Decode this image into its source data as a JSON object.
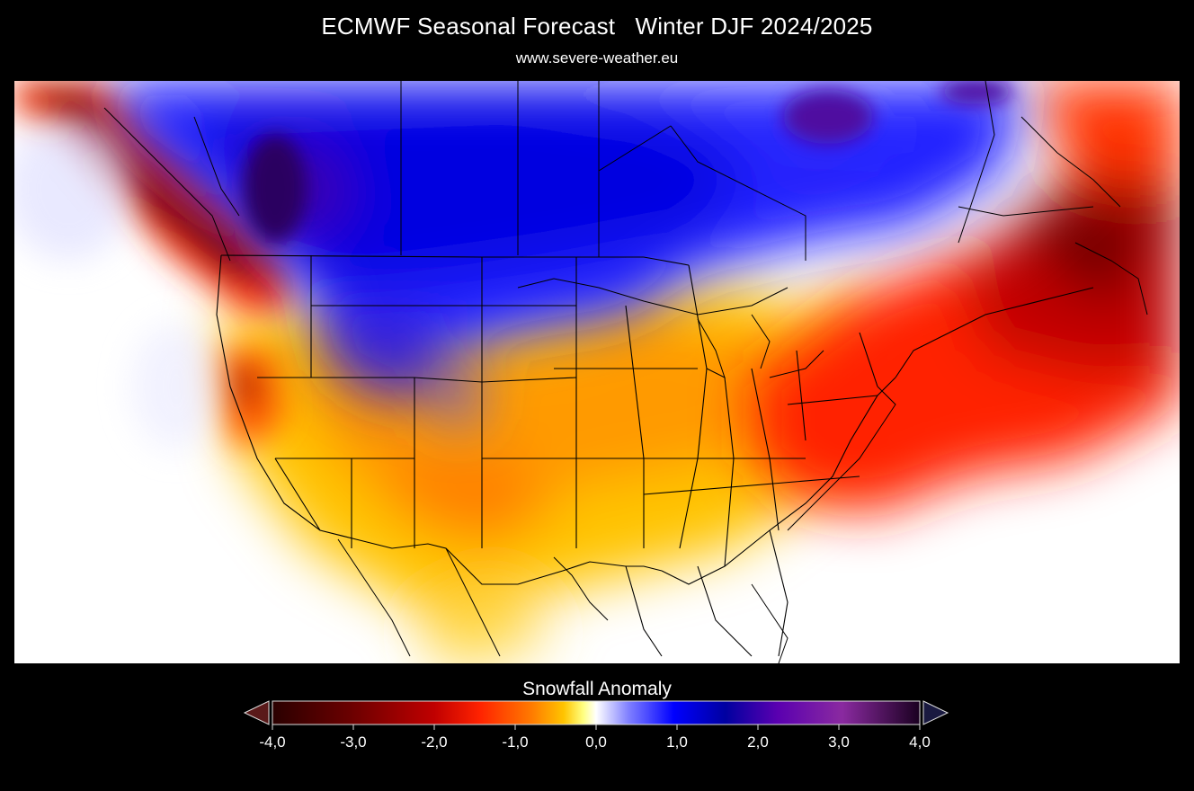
{
  "header": {
    "title": "ECMWF Seasonal Forecast   Winter DJF 2024/2025",
    "subtitle": "www.severe-weather.eu"
  },
  "legend": {
    "title": "Snowfall Anomaly",
    "min": -4.0,
    "max": 4.0,
    "ticks": [
      "-4,0",
      "-3,0",
      "-2,0",
      "-1,0",
      "0,0",
      "1,0",
      "2,0",
      "3,0",
      "4,0"
    ],
    "tick_values": [
      -4,
      -3,
      -2,
      -1,
      0,
      1,
      2,
      3,
      4
    ],
    "colors": [
      "#2a0000",
      "#6a0000",
      "#c00000",
      "#ff2200",
      "#ff7a00",
      "#ffc400",
      "#ffff80",
      "#ffffff",
      "#8080ff",
      "#0000ff",
      "#0000a0",
      "#5a00b0",
      "#8a2aa0",
      "#1a0020"
    ]
  }
}
